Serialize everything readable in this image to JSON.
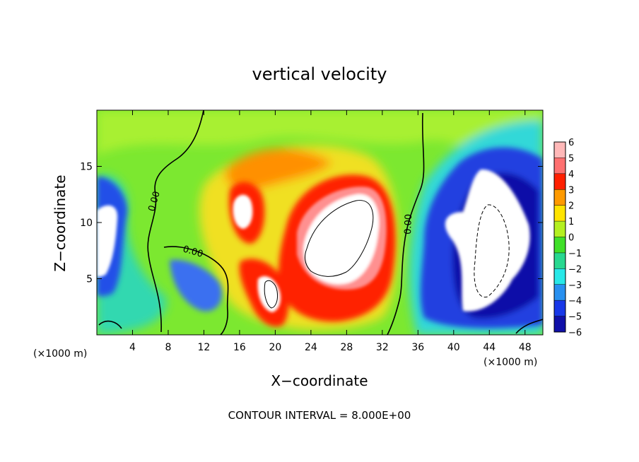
{
  "chart_data": {
    "type": "heatmap",
    "title": "vertical velocity",
    "xlabel": "X−coordinate",
    "ylabel": "Z−coordinate",
    "x_unit_label": "(×1000 m)",
    "y_unit_label": "(×1000 m)",
    "xlim": [
      0,
      50
    ],
    "ylim": [
      0,
      20
    ],
    "x_ticks": [
      4,
      8,
      12,
      16,
      20,
      24,
      28,
      32,
      36,
      40,
      44,
      48
    ],
    "y_ticks": [
      5,
      10,
      15
    ],
    "x_tick_labels": [
      "4",
      "8",
      "12",
      "16",
      "20",
      "24",
      "28",
      "32",
      "36",
      "40",
      "44",
      "48"
    ],
    "y_tick_labels": [
      "5",
      "10",
      "15"
    ],
    "colorbar": {
      "levels": [
        6,
        5,
        4,
        3,
        2,
        1,
        0,
        -1,
        -2,
        -3,
        -4,
        -5,
        -6
      ],
      "labels": [
        "6",
        "5",
        "4",
        "3",
        "2",
        "1",
        "0",
        "−1",
        "−2",
        "−3",
        "−4",
        "−5",
        "−6"
      ],
      "colors": [
        "#ffb8b8",
        "#ff7070",
        "#ff2000",
        "#ff9a00",
        "#ffe400",
        "#b4f020",
        "#40e028",
        "#28d890",
        "#28e8e8",
        "#2890f0",
        "#1838e8",
        "#1010a8",
        "#8000a8"
      ]
    },
    "contour_label": "0.00",
    "contour_interval_text": "CONTOUR INTERVAL = 8.000E+00",
    "features": [
      {
        "name": "updraft-core-1",
        "x": 26,
        "z": 8,
        "w": 8,
        "sign": "positive"
      },
      {
        "name": "updraft-core-2",
        "x": 19.5,
        "z": 3,
        "w": 8,
        "sign": "positive"
      },
      {
        "name": "updraft-core-3",
        "x": 16.3,
        "z": 10.7,
        "w": 7,
        "sign": "positive"
      },
      {
        "name": "downdraft-core-1",
        "x": 44,
        "z": 8,
        "w": -9,
        "sign": "negative"
      },
      {
        "name": "downdraft-core-2",
        "x": 1,
        "z": 9.5,
        "w": -7,
        "sign": "negative"
      },
      {
        "name": "downdraft-core-3",
        "x": 10.5,
        "z": 5,
        "w": -5,
        "sign": "negative"
      }
    ]
  }
}
